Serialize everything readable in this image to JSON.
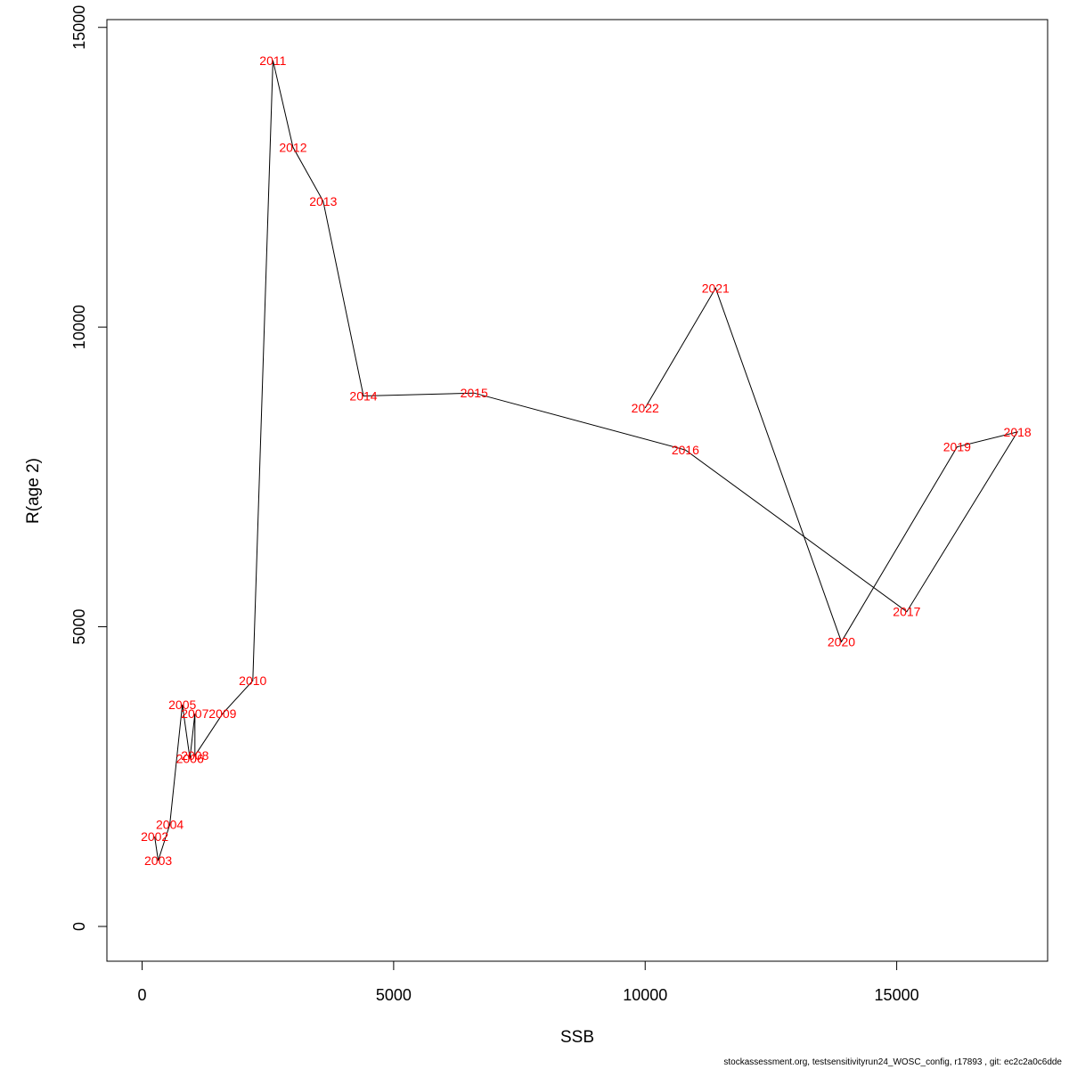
{
  "chart_data": {
    "type": "line",
    "xlabel": "SSB",
    "ylabel": "R(age 2)",
    "xlim": [
      -700,
      18000
    ],
    "ylim": [
      -580,
      15130
    ],
    "xticks": [
      "0",
      "5000",
      "10000",
      "15000"
    ],
    "xtick_values": [
      0,
      5000,
      10000,
      15000
    ],
    "yticks": [
      "0",
      "5000",
      "10000",
      "15000"
    ],
    "ytick_values": [
      0,
      5000,
      10000,
      15000
    ],
    "grid": false,
    "colors": {
      "line": "#000000",
      "labels": "#ff0000"
    },
    "points": [
      {
        "label": "2002",
        "x": 250,
        "y": 1500
      },
      {
        "label": "2003",
        "x": 320,
        "y": 1100
      },
      {
        "label": "2004",
        "x": 550,
        "y": 1700
      },
      {
        "label": "2005",
        "x": 800,
        "y": 3700
      },
      {
        "label": "2006",
        "x": 950,
        "y": 2800
      },
      {
        "label": "2007",
        "x": 1050,
        "y": 3550
      },
      {
        "label": "2008",
        "x": 1050,
        "y": 2850
      },
      {
        "label": "2009",
        "x": 1600,
        "y": 3550
      },
      {
        "label": "2010",
        "x": 2200,
        "y": 4100
      },
      {
        "label": "2011",
        "x": 2600,
        "y": 14450
      },
      {
        "label": "2012",
        "x": 3000,
        "y": 13000
      },
      {
        "label": "2013",
        "x": 3600,
        "y": 12100
      },
      {
        "label": "2014",
        "x": 4400,
        "y": 8850
      },
      {
        "label": "2015",
        "x": 6600,
        "y": 8900
      },
      {
        "label": "2016",
        "x": 10800,
        "y": 7950
      },
      {
        "label": "2017",
        "x": 15200,
        "y": 5250
      },
      {
        "label": "2018",
        "x": 17400,
        "y": 8250
      },
      {
        "label": "2019",
        "x": 16200,
        "y": 8000
      },
      {
        "label": "2020",
        "x": 13900,
        "y": 4750
      },
      {
        "label": "2021",
        "x": 11400,
        "y": 10650
      },
      {
        "label": "2022",
        "x": 10000,
        "y": 8650
      }
    ]
  },
  "footer": "stockassessment.org, testsensitivityrun24_WOSC_config, r17893 , git: ec2c2a0c6dde"
}
